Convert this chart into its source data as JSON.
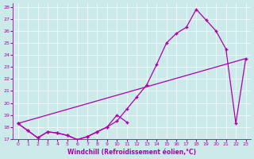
{
  "xlabel": "Windchill (Refroidissement éolien,°C)",
  "background_color": "#cceaea",
  "line_color": "#aa00aa",
  "grid_color": "#ffffff",
  "xlim": [
    -0.5,
    23.5
  ],
  "ylim": [
    17,
    28.3
  ],
  "yticks": [
    17,
    18,
    19,
    20,
    21,
    22,
    23,
    24,
    25,
    26,
    27,
    28
  ],
  "xticks": [
    0,
    1,
    2,
    3,
    4,
    5,
    6,
    7,
    8,
    9,
    10,
    11,
    12,
    13,
    14,
    15,
    16,
    17,
    18,
    19,
    20,
    21,
    22,
    23
  ],
  "line1_x": [
    0,
    1,
    2,
    3,
    4,
    5,
    6,
    7,
    8,
    9,
    10,
    11,
    12,
    13,
    14,
    15,
    16,
    17,
    18,
    19,
    20,
    21,
    22,
    23
  ],
  "line1_y": [
    18.3,
    17.7,
    17.1,
    17.6,
    17.5,
    17.3,
    16.95,
    17.2,
    17.6,
    18.0,
    18.5,
    19.5,
    20.5,
    21.5,
    23.2,
    25.0,
    25.8,
    26.3,
    27.8,
    26.9,
    26.0,
    24.5,
    18.3,
    23.7
  ],
  "line2_x": [
    0,
    1,
    2,
    3,
    4,
    5,
    6,
    7,
    8,
    9,
    10,
    11
  ],
  "line2_y": [
    18.3,
    17.7,
    17.1,
    17.6,
    17.5,
    17.3,
    16.95,
    17.2,
    17.6,
    18.0,
    19.0,
    18.4
  ],
  "line3_x": [
    0,
    23
  ],
  "line3_y": [
    18.3,
    23.7
  ]
}
